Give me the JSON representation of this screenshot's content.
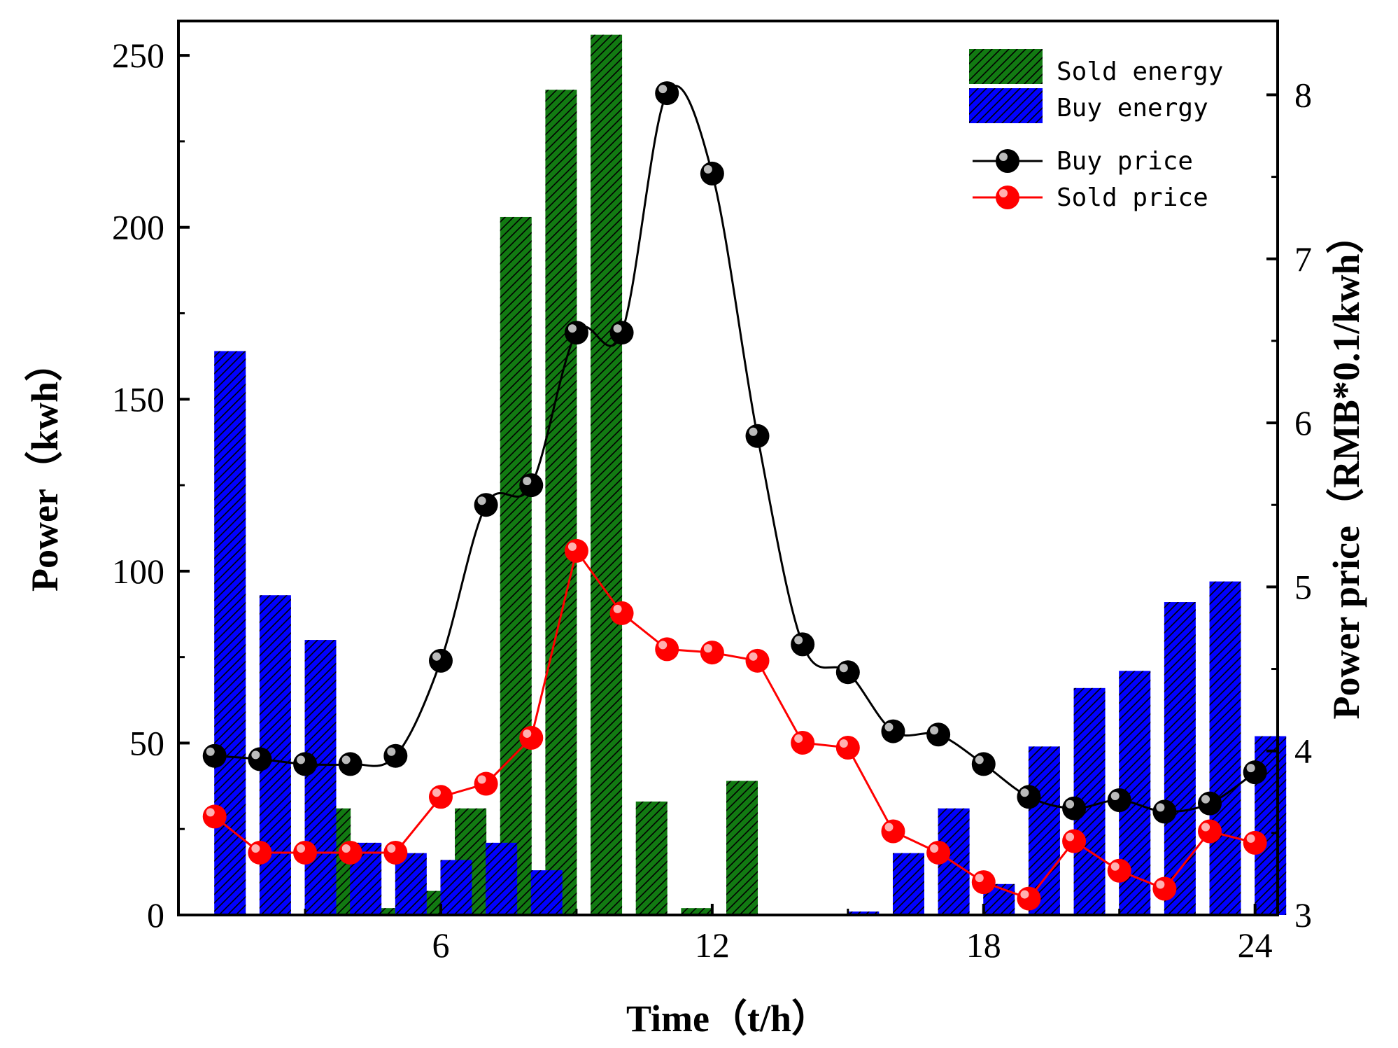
{
  "chart_data": {
    "type": "bar",
    "title": "",
    "xlabel": "Time（t/h）",
    "ylabel": "Power（kwh）",
    "y2label": "Power price（RMB*0.1/kwh）",
    "xlim": [
      0.2,
      24.5
    ],
    "ylim": [
      0,
      260
    ],
    "y2lim": [
      3,
      8.45
    ],
    "xticks": [
      "6",
      "12",
      "18",
      "24"
    ],
    "yticks": [
      "0",
      "50",
      "100",
      "150",
      "200",
      "250"
    ],
    "y2ticks": [
      "3",
      "4",
      "5",
      "6",
      "7",
      "8"
    ],
    "grid": false,
    "legend_position": "top-right",
    "x": [
      1,
      2,
      3,
      4,
      5,
      6,
      7,
      8,
      9,
      10,
      11,
      12,
      13,
      14,
      15,
      16,
      17,
      18,
      19,
      20,
      21,
      22,
      23,
      24
    ],
    "series": [
      {
        "name": "Sold energy",
        "type": "bar",
        "axis": "left",
        "color": "#127A12",
        "values": [
          0,
          0,
          0,
          31,
          2,
          7,
          31,
          203,
          240,
          256,
          33,
          2,
          39,
          0,
          0,
          0,
          0,
          0,
          0,
          0,
          0,
          0,
          0,
          0
        ]
      },
      {
        "name": "Buy energy",
        "type": "bar",
        "axis": "left",
        "color": "#0000FF",
        "values": [
          164,
          93,
          80,
          21,
          18,
          16,
          21,
          13,
          0,
          0,
          0,
          0,
          0,
          0,
          1,
          18,
          31,
          9,
          49,
          66,
          71,
          91,
          97,
          52
        ]
      },
      {
        "name": "Buy price",
        "type": "line",
        "axis": "right",
        "color": "#000000",
        "values": [
          3.97,
          3.95,
          3.92,
          3.92,
          3.97,
          4.55,
          5.5,
          5.62,
          6.55,
          6.55,
          8.01,
          7.52,
          5.92,
          4.65,
          4.48,
          4.12,
          4.1,
          3.92,
          3.72,
          3.65,
          3.7,
          3.63,
          3.68,
          3.87
        ]
      },
      {
        "name": "Sold price",
        "type": "line",
        "axis": "right",
        "color": "#FF0000",
        "values": [
          3.6,
          3.38,
          3.38,
          3.38,
          3.38,
          3.72,
          3.8,
          4.08,
          5.22,
          4.84,
          4.62,
          4.6,
          4.55,
          4.05,
          4.02,
          3.51,
          3.38,
          3.2,
          3.1,
          3.45,
          3.27,
          3.16,
          3.51,
          3.44
        ]
      }
    ]
  }
}
